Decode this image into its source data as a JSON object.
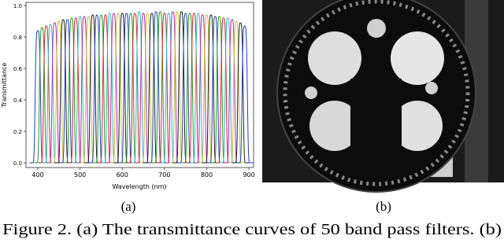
{
  "chart_data": {
    "type": "line",
    "xlabel": "Wavelength (nm)",
    "ylabel": "Transmittance",
    "xlim": [
      372,
      911
    ],
    "ylim": [
      -0.03,
      1.02
    ],
    "xticks": [
      400,
      500,
      600,
      700,
      800,
      900
    ],
    "yticks": [
      {
        "value": 0,
        "label": "0.0"
      },
      0.2,
      0.4,
      0.6,
      0.8,
      {
        "value": 1,
        "label": "1.0"
      }
    ],
    "colors": [
      "#1f3fd0",
      "#20a020",
      "#e02020",
      "#20c0c0",
      "#c020c0",
      "#c8c020",
      "#202020"
    ],
    "x": [
      400,
      410,
      420,
      430,
      440,
      450,
      460,
      470,
      480,
      490,
      500,
      510,
      520,
      530,
      540,
      550,
      560,
      570,
      580,
      590,
      600,
      610,
      620,
      630,
      640,
      650,
      660,
      670,
      680,
      690,
      700,
      710,
      720,
      730,
      740,
      750,
      760,
      770,
      780,
      790,
      800,
      810,
      820,
      830,
      840,
      850,
      860,
      870,
      880,
      890
    ],
    "values": [
      0.84,
      0.86,
      0.87,
      0.88,
      0.89,
      0.9,
      0.91,
      0.91,
      0.92,
      0.92,
      0.93,
      0.93,
      0.93,
      0.94,
      0.94,
      0.94,
      0.94,
      0.95,
      0.95,
      0.95,
      0.95,
      0.95,
      0.95,
      0.95,
      0.96,
      0.95,
      0.95,
      0.95,
      0.96,
      0.96,
      0.95,
      0.95,
      0.96,
      0.96,
      0.96,
      0.95,
      0.95,
      0.95,
      0.95,
      0.94,
      0.94,
      0.94,
      0.93,
      0.93,
      0.92,
      0.92,
      0.91,
      0.9,
      0.89,
      0.87
    ]
  },
  "subfigure_labels": [
    "(a)",
    "(b)"
  ],
  "caption": "Figure 2. (a) The transmittance curves of 50 band pass filters. (b)"
}
